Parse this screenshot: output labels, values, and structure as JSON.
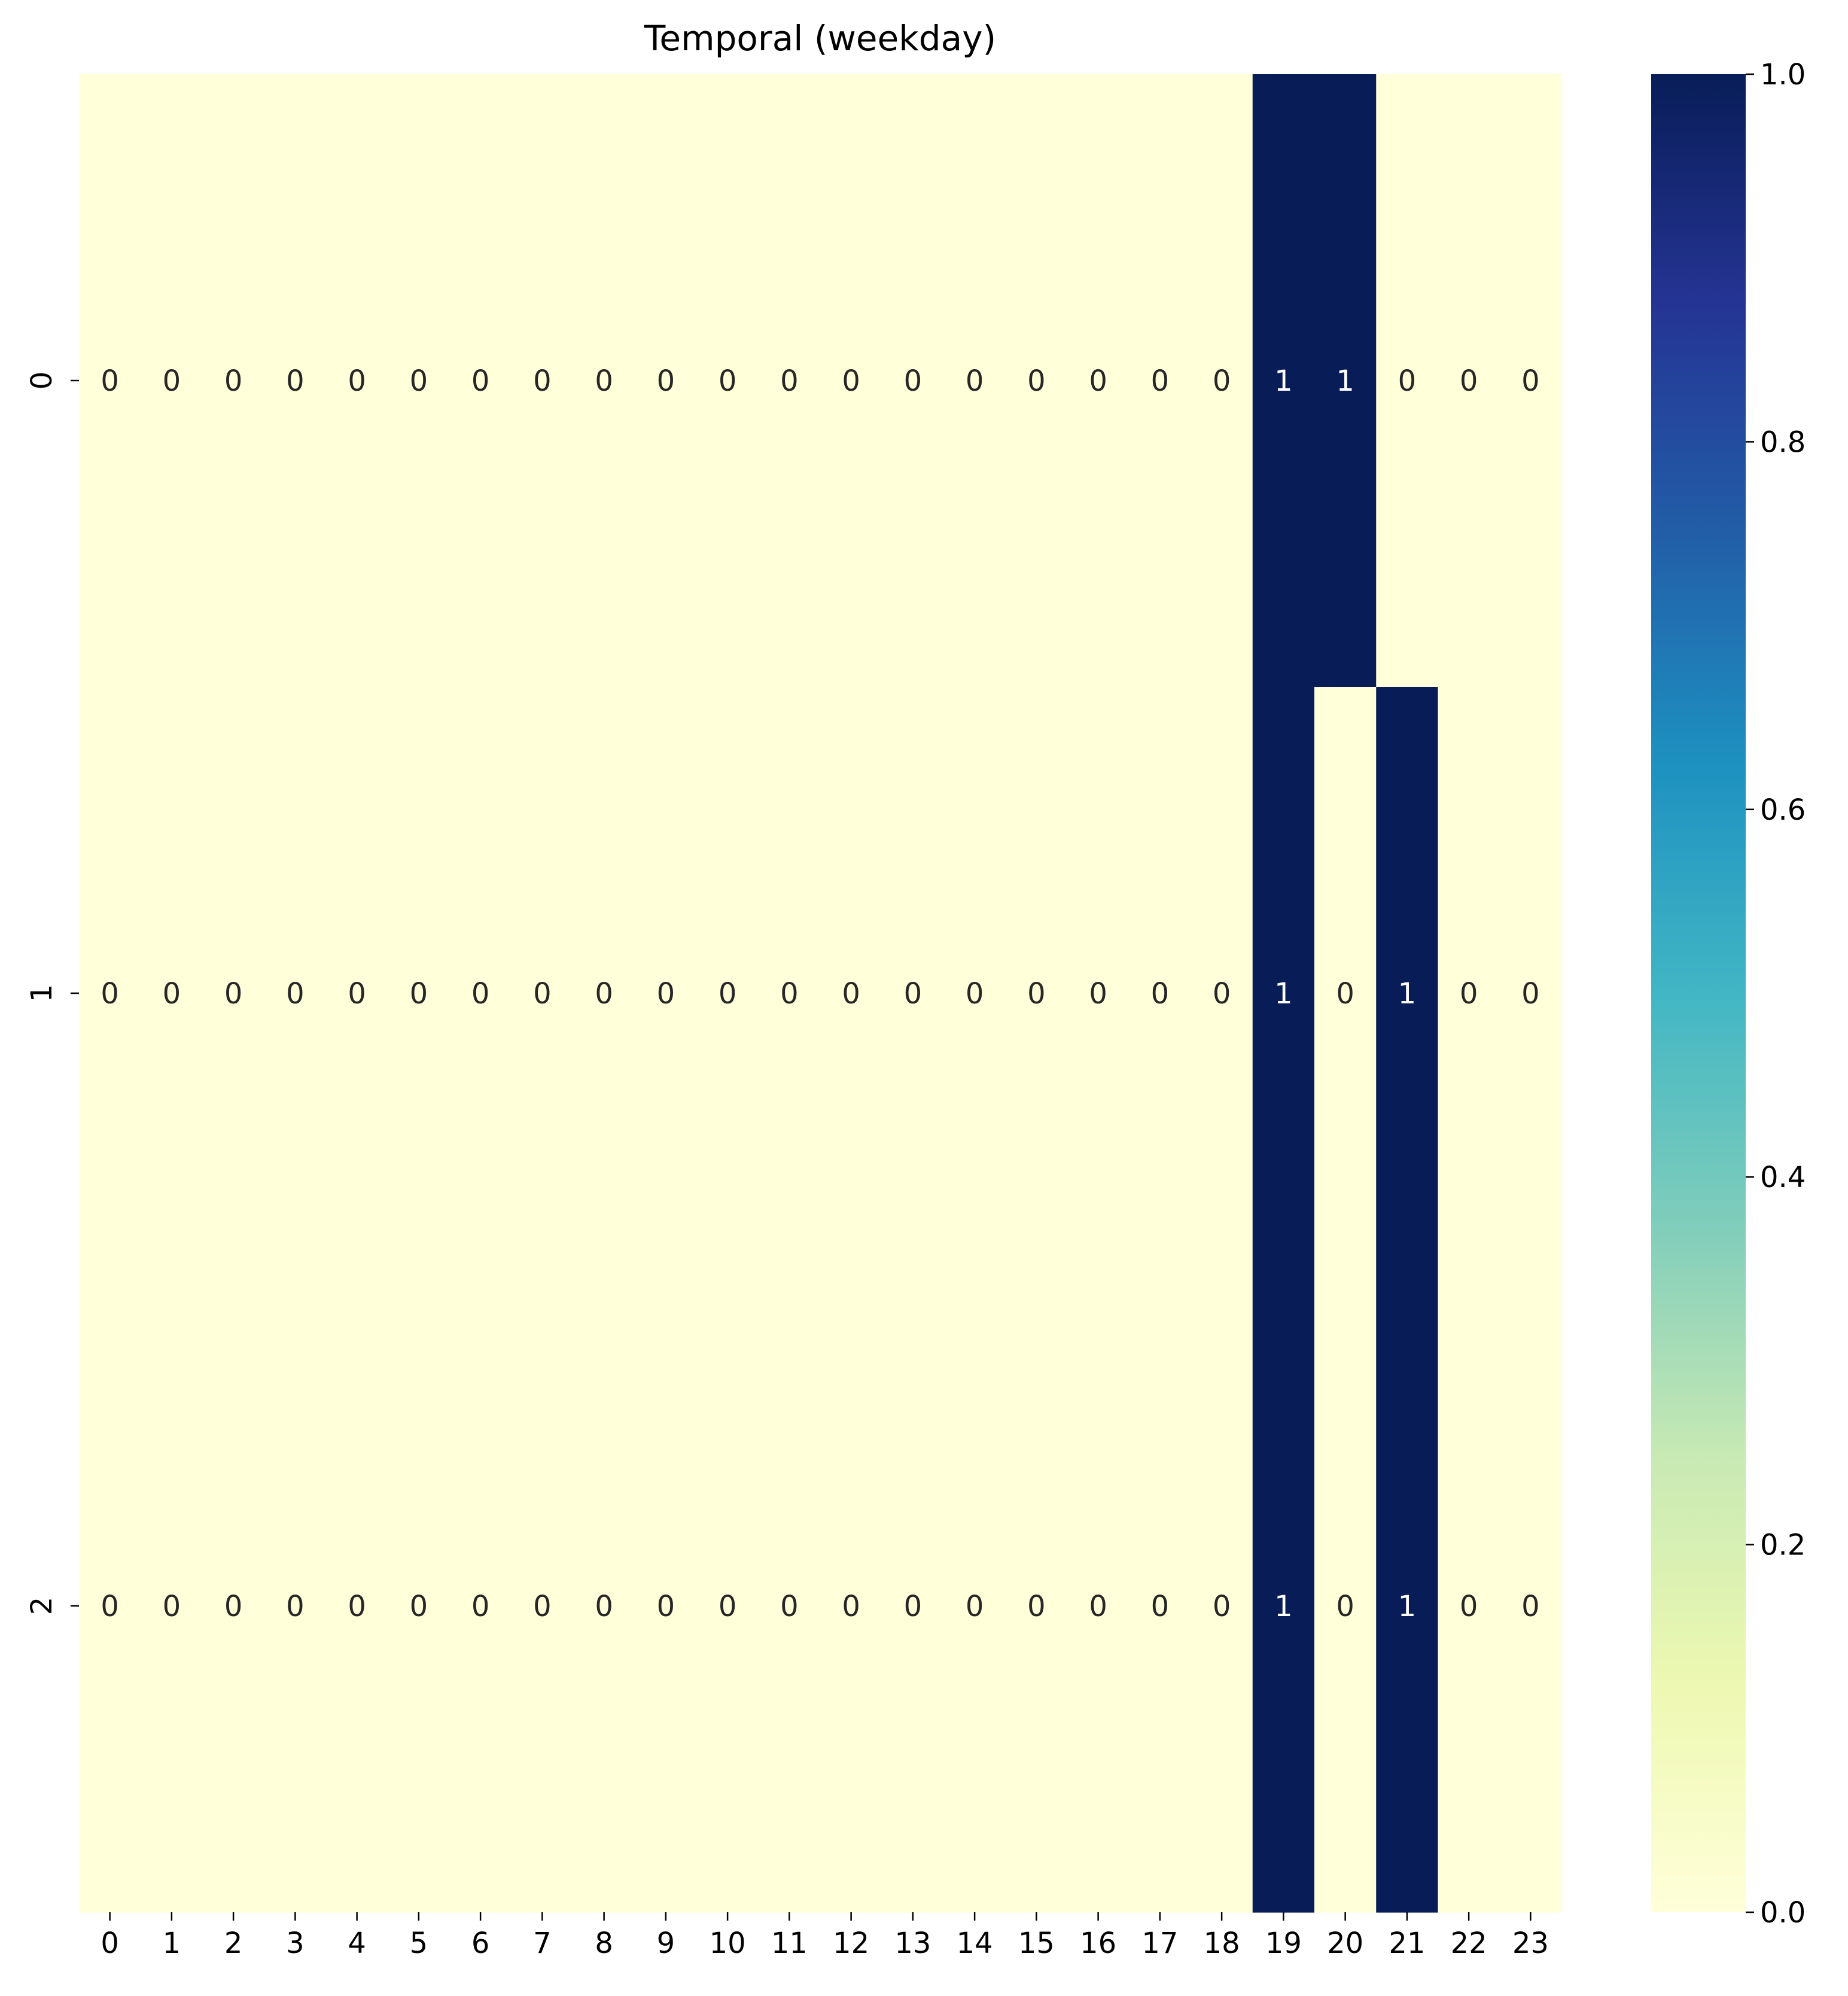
{
  "chart_data": {
    "type": "heatmap",
    "title": "Temporal (weekday)",
    "xlabel": "",
    "ylabel": "",
    "x_categories": [
      "0",
      "1",
      "2",
      "3",
      "4",
      "5",
      "6",
      "7",
      "8",
      "9",
      "10",
      "11",
      "12",
      "13",
      "14",
      "15",
      "16",
      "17",
      "18",
      "19",
      "20",
      "21",
      "22",
      "23"
    ],
    "y_categories": [
      "0",
      "1",
      "2"
    ],
    "values": [
      [
        0,
        0,
        0,
        0,
        0,
        0,
        0,
        0,
        0,
        0,
        0,
        0,
        0,
        0,
        0,
        0,
        0,
        0,
        0,
        1,
        1,
        0,
        0,
        0
      ],
      [
        0,
        0,
        0,
        0,
        0,
        0,
        0,
        0,
        0,
        0,
        0,
        0,
        0,
        0,
        0,
        0,
        0,
        0,
        0,
        1,
        0,
        1,
        0,
        0
      ],
      [
        0,
        0,
        0,
        0,
        0,
        0,
        0,
        0,
        0,
        0,
        0,
        0,
        0,
        0,
        0,
        0,
        0,
        0,
        0,
        1,
        0,
        1,
        0,
        0
      ]
    ],
    "annotate": true,
    "colormap": "YlGnBu",
    "vmin": 0,
    "vmax": 1,
    "colorbar": {
      "ticks": [
        0.0,
        0.2,
        0.4,
        0.6,
        0.8,
        1.0
      ],
      "tick_labels": [
        "0.0",
        "0.2",
        "0.4",
        "0.6",
        "0.8",
        "1.0"
      ]
    },
    "colors": {
      "low": "#ffffd9",
      "high": "#081d58",
      "annotation_dark": "#262626",
      "annotation_light": "#ffffff"
    }
  }
}
